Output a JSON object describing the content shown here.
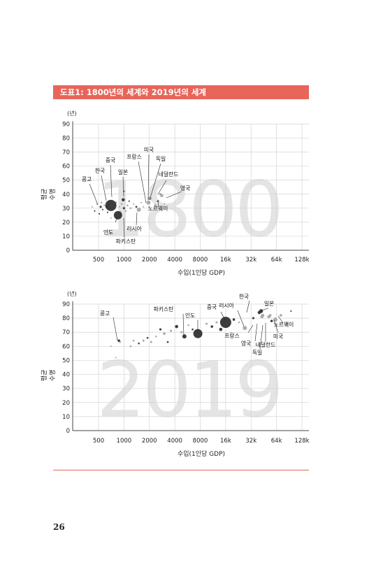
{
  "header": {
    "title": "도표1: 1800년의 세계와 2019년의 세계"
  },
  "page_number": "26",
  "colors": {
    "accent": "#e8655a",
    "bubble_dark": "#333333",
    "bubble_light": "#a8a8a8",
    "watermark": "#e4e4e4"
  },
  "chart_data": [
    {
      "type": "scatter",
      "title": "1800",
      "ylabel": "평균 수명",
      "ylabel_lines": [
        "평균",
        "수명"
      ],
      "y_unit": "(년)",
      "xlabel": "수입(1인당 GDP)",
      "x_scale": "log2",
      "x_ticks": [
        500,
        1000,
        2000,
        4000,
        8000,
        16000,
        32000,
        64000,
        128000
      ],
      "x_tick_labels": [
        "500",
        "1000",
        "2000",
        "4000",
        "8000",
        "16k",
        "32k",
        "64k",
        "128k"
      ],
      "y_ticks": [
        0,
        10,
        20,
        30,
        40,
        50,
        60,
        70,
        80,
        90
      ],
      "ylim": [
        0,
        90
      ],
      "grid": true,
      "points": [
        {
          "label": "중국",
          "x": 700,
          "y": 32,
          "size": 16,
          "shade": "dark"
        },
        {
          "label": "인도",
          "x": 850,
          "y": 25,
          "size": 12,
          "shade": "dark"
        },
        {
          "label": "프랑스",
          "x": 1950,
          "y": 34,
          "size": 6,
          "shade": "light"
        },
        {
          "label": "러시아",
          "x": 1500,
          "y": 29,
          "size": 6,
          "shade": "light"
        },
        {
          "label": "영국",
          "x": 2800,
          "y": 39,
          "size": 4,
          "shade": "light"
        },
        {
          "label": "미국",
          "x": 2050,
          "y": 37,
          "size": 4,
          "shade": "light"
        },
        {
          "label": "독일",
          "x": 2000,
          "y": 37,
          "size": 4,
          "shade": "light"
        },
        {
          "label": "일본",
          "x": 980,
          "y": 36,
          "size": 4,
          "shade": "dark"
        },
        {
          "label": "한국",
          "x": 620,
          "y": 31,
          "size": 3,
          "shade": "dark"
        },
        {
          "label": "콩고",
          "x": 530,
          "y": 31,
          "size": 2.5,
          "shade": "dark"
        },
        {
          "label": "네덜란드",
          "x": 2700,
          "y": 40,
          "size": 3,
          "shade": "light"
        },
        {
          "label": "노르웨이",
          "x": 2350,
          "y": 32,
          "size": 3,
          "shade": "light"
        },
        {
          "label": "파키스탄",
          "x": 900,
          "y": 27,
          "size": 3,
          "shade": "dark"
        },
        {
          "label": "",
          "x": 420,
          "y": 31,
          "size": 1.5,
          "shade": "light"
        },
        {
          "label": "",
          "x": 450,
          "y": 28,
          "size": 1.5,
          "shade": "dark"
        },
        {
          "label": "",
          "x": 480,
          "y": 33,
          "size": 1.5,
          "shade": "light"
        },
        {
          "label": "",
          "x": 510,
          "y": 26,
          "size": 1.5,
          "shade": "dark"
        },
        {
          "label": "",
          "x": 540,
          "y": 34,
          "size": 2,
          "shade": "light"
        },
        {
          "label": "",
          "x": 560,
          "y": 29,
          "size": 1.5,
          "shade": "dark"
        },
        {
          "label": "",
          "x": 590,
          "y": 32,
          "size": 2,
          "shade": "light"
        },
        {
          "label": "",
          "x": 640,
          "y": 27,
          "size": 1.5,
          "shade": "dark"
        },
        {
          "label": "",
          "x": 660,
          "y": 35,
          "size": 1.5,
          "shade": "light"
        },
        {
          "label": "",
          "x": 760,
          "y": 30,
          "size": 2,
          "shade": "light"
        },
        {
          "label": "",
          "x": 800,
          "y": 34,
          "size": 2,
          "shade": "dark"
        },
        {
          "label": "",
          "x": 880,
          "y": 31,
          "size": 1.5,
          "shade": "light"
        },
        {
          "label": "",
          "x": 940,
          "y": 33,
          "size": 2,
          "shade": "light"
        },
        {
          "label": "",
          "x": 1000,
          "y": 30,
          "size": 2.5,
          "shade": "dark"
        },
        {
          "label": "",
          "x": 1050,
          "y": 28,
          "size": 2,
          "shade": "light"
        },
        {
          "label": "",
          "x": 1100,
          "y": 32,
          "size": 2,
          "shade": "light"
        },
        {
          "label": "",
          "x": 1150,
          "y": 35,
          "size": 1.5,
          "shade": "dark"
        },
        {
          "label": "",
          "x": 1200,
          "y": 30,
          "size": 2,
          "shade": "light"
        },
        {
          "label": "",
          "x": 1300,
          "y": 33,
          "size": 1.5,
          "shade": "light"
        },
        {
          "label": "",
          "x": 1400,
          "y": 31,
          "size": 2,
          "shade": "dark"
        },
        {
          "label": "",
          "x": 1600,
          "y": 34,
          "size": 1.5,
          "shade": "light"
        },
        {
          "label": "",
          "x": 1700,
          "y": 31,
          "size": 1.5,
          "shade": "light"
        },
        {
          "label": "",
          "x": 2500,
          "y": 35,
          "size": 1.5,
          "shade": "dark"
        },
        {
          "label": "",
          "x": 3000,
          "y": 33,
          "size": 1.5,
          "shade": "light"
        },
        {
          "label": "",
          "x": 1000,
          "y": 42,
          "size": 1.5,
          "shade": "dark"
        },
        {
          "label": "",
          "x": 700,
          "y": 23,
          "size": 1.5,
          "shade": "light"
        }
      ]
    },
    {
      "type": "scatter",
      "title": "2019",
      "ylabel": "평균 수명",
      "ylabel_lines": [
        "평균",
        "수명"
      ],
      "y_unit": "(년)",
      "xlabel": "수입(1인당 GDP)",
      "x_scale": "log2",
      "x_ticks": [
        500,
        1000,
        2000,
        4000,
        8000,
        16000,
        32000,
        64000,
        128000
      ],
      "x_tick_labels": [
        "500",
        "1000",
        "2000",
        "4000",
        "8000",
        "16k",
        "32k",
        "64k",
        "128k"
      ],
      "y_ticks": [
        0,
        10,
        20,
        30,
        40,
        50,
        60,
        70,
        80,
        90
      ],
      "ylim": [
        0,
        90
      ],
      "grid": true,
      "points": [
        {
          "label": "중국",
          "x": 16000,
          "y": 77,
          "size": 16,
          "shade": "dark"
        },
        {
          "label": "인도",
          "x": 7500,
          "y": 69,
          "size": 13,
          "shade": "dark"
        },
        {
          "label": "콩고",
          "x": 870,
          "y": 64,
          "size": 3,
          "shade": "dark"
        },
        {
          "label": "파키스탄",
          "x": 5200,
          "y": 67,
          "size": 6,
          "shade": "dark"
        },
        {
          "label": "러시아",
          "x": 27000,
          "y": 73,
          "size": 6,
          "shade": "light"
        },
        {
          "label": "한국",
          "x": 40000,
          "y": 84,
          "size": 4,
          "shade": "dark"
        },
        {
          "label": "일본",
          "x": 42000,
          "y": 85,
          "size": 5,
          "shade": "dark"
        },
        {
          "label": "프랑스",
          "x": 44000,
          "y": 82,
          "size": 4,
          "shade": "light"
        },
        {
          "label": "영국",
          "x": 43000,
          "y": 81,
          "size": 4,
          "shade": "light"
        },
        {
          "label": "독일",
          "x": 52000,
          "y": 81,
          "size": 4,
          "shade": "light"
        },
        {
          "label": "네덜란드",
          "x": 54000,
          "y": 82,
          "size": 3,
          "shade": "light"
        },
        {
          "label": "미국",
          "x": 62000,
          "y": 79,
          "size": 6,
          "shade": "light"
        },
        {
          "label": "노르웨이",
          "x": 72000,
          "y": 82,
          "size": 3,
          "shade": "light"
        },
        {
          "label": "",
          "x": 700,
          "y": 60,
          "size": 1.5,
          "shade": "light"
        },
        {
          "label": "",
          "x": 800,
          "y": 52,
          "size": 1.5,
          "shade": "light"
        },
        {
          "label": "",
          "x": 900,
          "y": 63,
          "size": 2,
          "shade": "light"
        },
        {
          "label": "",
          "x": 1200,
          "y": 60,
          "size": 2,
          "shade": "light"
        },
        {
          "label": "",
          "x": 1300,
          "y": 64,
          "size": 2,
          "shade": "light"
        },
        {
          "label": "",
          "x": 1500,
          "y": 62,
          "size": 2,
          "shade": "dark"
        },
        {
          "label": "",
          "x": 1700,
          "y": 64,
          "size": 2.5,
          "shade": "light"
        },
        {
          "label": "",
          "x": 1900,
          "y": 66,
          "size": 2,
          "shade": "dark"
        },
        {
          "label": "",
          "x": 2100,
          "y": 63,
          "size": 2.5,
          "shade": "light"
        },
        {
          "label": "",
          "x": 2400,
          "y": 67,
          "size": 2,
          "shade": "light"
        },
        {
          "label": "",
          "x": 2700,
          "y": 72,
          "size": 2.5,
          "shade": "dark"
        },
        {
          "label": "",
          "x": 3000,
          "y": 69,
          "size": 3,
          "shade": "light"
        },
        {
          "label": "",
          "x": 3300,
          "y": 63,
          "size": 2,
          "shade": "dark"
        },
        {
          "label": "",
          "x": 3600,
          "y": 71,
          "size": 2.5,
          "shade": "light"
        },
        {
          "label": "",
          "x": 4200,
          "y": 74,
          "size": 4,
          "shade": "dark"
        },
        {
          "label": "",
          "x": 4800,
          "y": 70,
          "size": 2.5,
          "shade": "light"
        },
        {
          "label": "",
          "x": 5800,
          "y": 75,
          "size": 2,
          "shade": "light"
        },
        {
          "label": "",
          "x": 6500,
          "y": 72,
          "size": 2,
          "shade": "dark"
        },
        {
          "label": "",
          "x": 9500,
          "y": 76,
          "size": 2.5,
          "shade": "light"
        },
        {
          "label": "",
          "x": 11000,
          "y": 74,
          "size": 3,
          "shade": "dark"
        },
        {
          "label": "",
          "x": 12500,
          "y": 77,
          "size": 2.5,
          "shade": "light"
        },
        {
          "label": "",
          "x": 14000,
          "y": 72,
          "size": 4,
          "shade": "dark"
        },
        {
          "label": "",
          "x": 20000,
          "y": 79,
          "size": 3,
          "shade": "dark"
        },
        {
          "label": "",
          "x": 23000,
          "y": 77,
          "size": 2,
          "shade": "light"
        },
        {
          "label": "",
          "x": 34000,
          "y": 80,
          "size": 2.5,
          "shade": "dark"
        },
        {
          "label": "",
          "x": 56000,
          "y": 78,
          "size": 3,
          "shade": "dark"
        },
        {
          "label": "",
          "x": 85000,
          "y": 76,
          "size": 2.5,
          "shade": "light"
        },
        {
          "label": "",
          "x": 95000,
          "y": 85,
          "size": 1.5,
          "shade": "dark"
        }
      ]
    }
  ]
}
